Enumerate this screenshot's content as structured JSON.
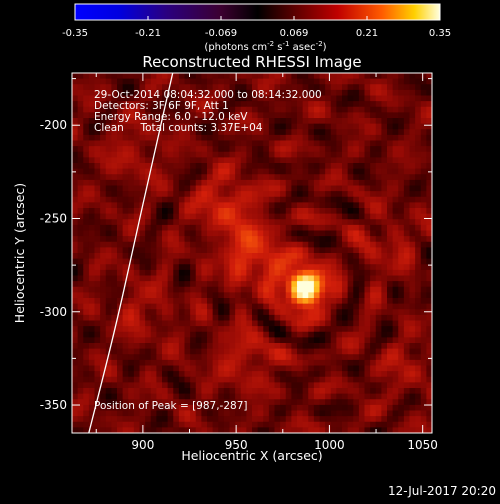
{
  "chart_data": {
    "type": "heatmap",
    "title": "Reconstructed RHESSI Image",
    "xlabel": "Heliocentric X (arcsec)",
    "ylabel": "Heliocentric Y (arcsec)",
    "xlim": [
      862,
      1055
    ],
    "ylim": [
      -365,
      -172
    ],
    "xticks": [
      900,
      950,
      1000,
      1050
    ],
    "yticks": [
      -200,
      -250,
      -300,
      -350
    ],
    "colorbar": {
      "min": -0.35,
      "max": 0.35,
      "ticks": [
        "-0.35",
        "-0.21",
        "-0.069",
        "0.069",
        "0.21",
        "0.35"
      ],
      "label_main": "(photons cm",
      "label_exp1": "-2",
      "label_mid1": " s",
      "label_exp2": "-1",
      "label_mid2": " asec",
      "label_exp3": "-2",
      "label_end": ")"
    },
    "annotations": {
      "time": "29-Oct-2014 08:04:32.000 to 08:14:32.000",
      "detectors": "Detectors: 3F 6F 9F, Att 1",
      "energy": "Energy Range: 6.0 - 12.0 keV",
      "clean": "Clean     Total counts: 3.37E+04",
      "peak": "Position of Peak = [987,-287]"
    },
    "peak": {
      "x": 987,
      "y": -287,
      "value": 0.35
    },
    "secondary_sources": [
      {
        "x": 945,
        "y": -243,
        "value": 0.13
      },
      {
        "x": 960,
        "y": -270,
        "value": 0.17
      },
      {
        "x": 955,
        "y": -325,
        "value": 0.09
      },
      {
        "x": 1030,
        "y": -265,
        "value": 0.06
      },
      {
        "x": 895,
        "y": -215,
        "value": 0.06
      },
      {
        "x": 1040,
        "y": -330,
        "value": 0.05
      },
      {
        "x": 900,
        "y": -300,
        "value": 0.06
      }
    ],
    "limb_curve": [
      {
        "x": 916,
        "y": -172
      },
      {
        "x": 905,
        "y": -220
      },
      {
        "x": 895,
        "y": -265
      },
      {
        "x": 885,
        "y": -310
      },
      {
        "x": 871,
        "y": -365
      }
    ]
  },
  "footer": {
    "date": "12-Jul-2017 20:20"
  },
  "colors": {
    "background": "#000000",
    "text": "#ffffff",
    "limb": "#ffffff"
  }
}
